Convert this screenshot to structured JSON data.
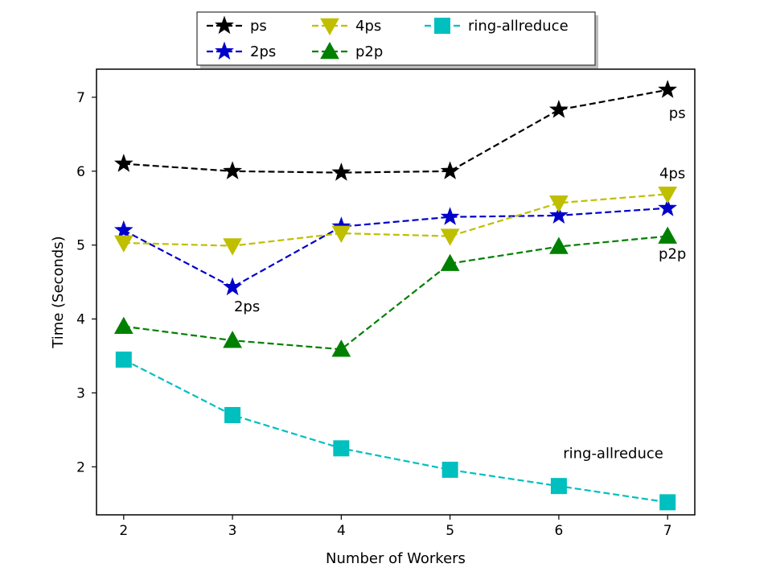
{
  "chart_data": {
    "type": "line",
    "title": "",
    "xlabel": "Number of Workers",
    "ylabel": "Time (Seconds)",
    "x": [
      2,
      3,
      4,
      5,
      6,
      7
    ],
    "xlim": [
      1.75,
      7.25
    ],
    "ylim": [
      1.35,
      7.38
    ],
    "xticks": [
      2,
      3,
      4,
      5,
      6,
      7
    ],
    "yticks": [
      2,
      3,
      4,
      5,
      6,
      7
    ],
    "grid": false,
    "legend_location": "upper-center outside",
    "series": [
      {
        "name": "ps",
        "color": "#000000",
        "marker": "star",
        "values": [
          6.1,
          6.0,
          5.98,
          6.0,
          6.83,
          7.1
        ]
      },
      {
        "name": "2ps",
        "color": "#0000cc",
        "marker": "star",
        "values": [
          5.2,
          4.43,
          5.25,
          5.38,
          5.4,
          5.5
        ]
      },
      {
        "name": "4ps",
        "color": "#bfbf00",
        "marker": "triangle-down",
        "values": [
          5.03,
          4.99,
          5.16,
          5.12,
          5.57,
          5.69
        ]
      },
      {
        "name": "p2p",
        "color": "#008000",
        "marker": "triangle-up",
        "values": [
          3.9,
          3.71,
          3.59,
          4.75,
          4.98,
          5.12
        ]
      },
      {
        "name": "ring-allreduce",
        "color": "#00bfbf",
        "marker": "square",
        "values": [
          3.45,
          2.7,
          2.25,
          1.96,
          1.74,
          1.52
        ]
      }
    ],
    "annotations": [
      {
        "text": "ps",
        "series": "ps",
        "x": 7
      },
      {
        "text": "4ps",
        "series": "4ps",
        "x": 7
      },
      {
        "text": "p2p",
        "series": "p2p",
        "x": 7
      },
      {
        "text": "2ps",
        "series": "2ps",
        "x": 3
      },
      {
        "text": "ring-allreduce",
        "series": "ring-allreduce",
        "x": 6.5
      }
    ]
  }
}
